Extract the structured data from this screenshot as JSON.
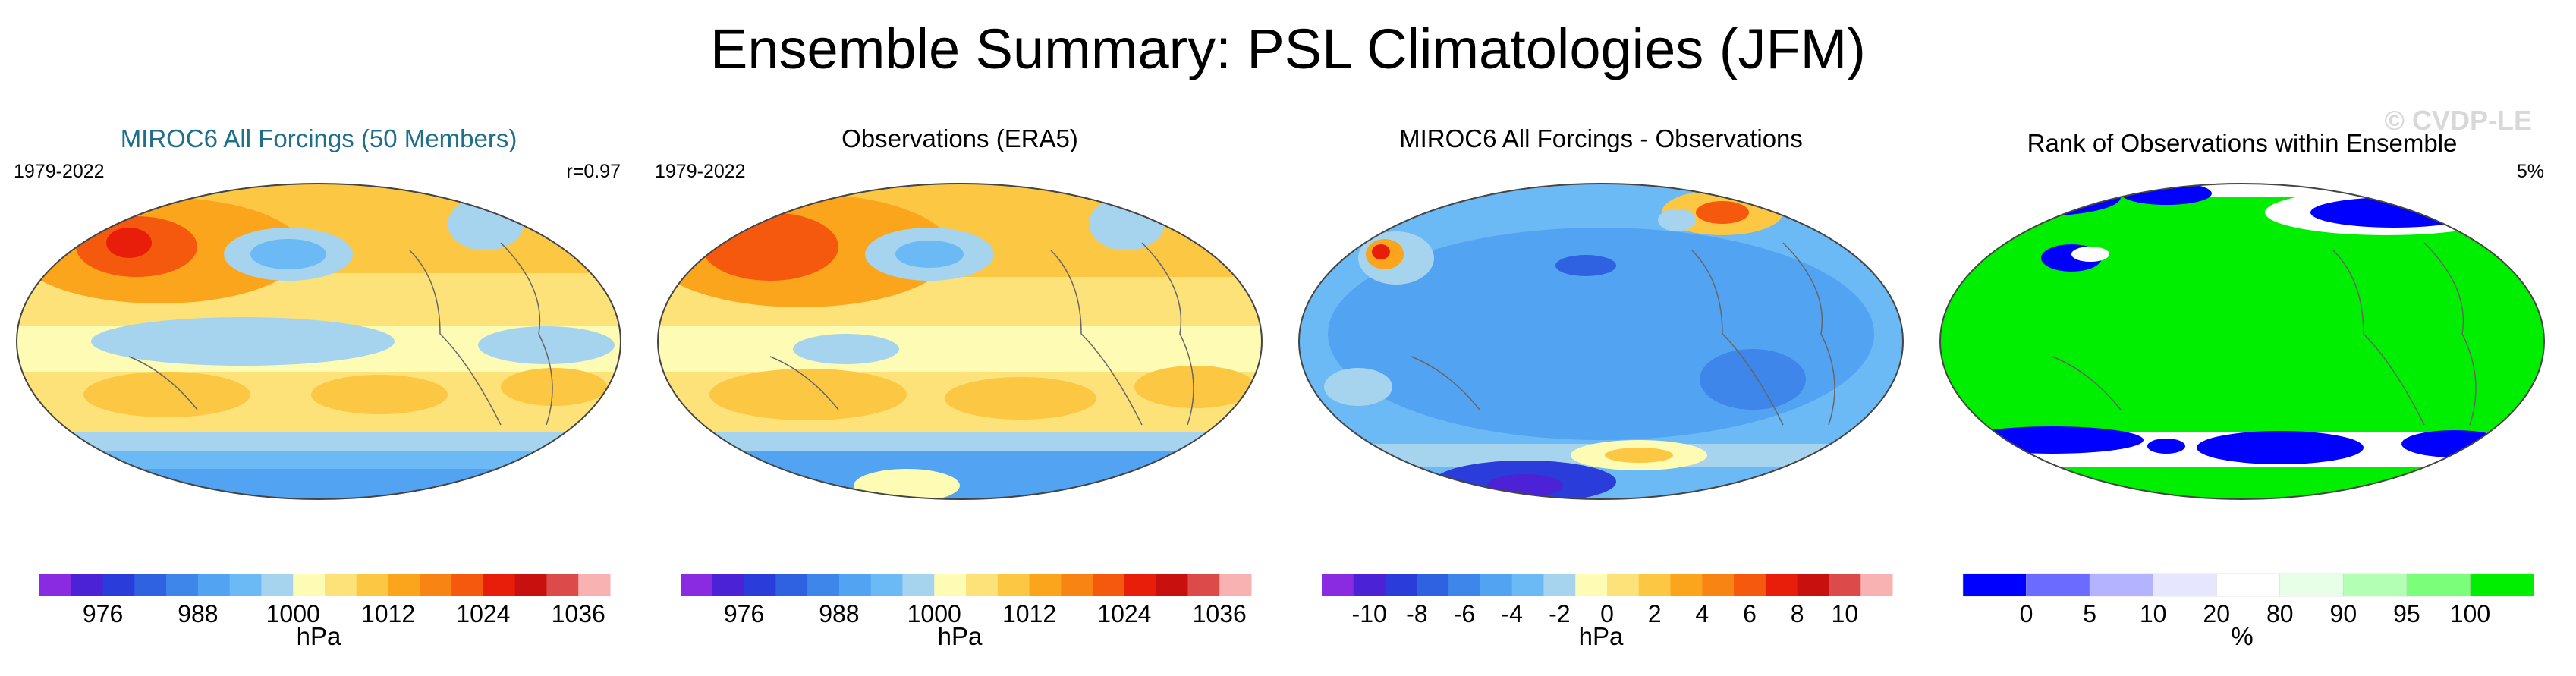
{
  "figure": {
    "title": "Ensemble Summary: PSL Climatologies (JFM)",
    "watermark": "© CVDP-LE"
  },
  "panels": [
    {
      "title": "MIROC6 All Forcings (50 Members)",
      "left_text": "1979-2022",
      "right_text": "r=0.97",
      "colorbar": {
        "colors": [
          "#8a2be2",
          "#4b22d6",
          "#2a3cd9",
          "#2f62e0",
          "#3e86ea",
          "#52a3f2",
          "#6bb9f5",
          "#a6d4ee",
          "#fdfbb4",
          "#fde27a",
          "#fcc743",
          "#fba51d",
          "#f88414",
          "#f4590d",
          "#e81e0a",
          "#c8100e",
          "#dd4a4a",
          "#f9b2b2"
        ],
        "tick_labels": [
          "976",
          "988",
          "1000",
          "1012",
          "1024",
          "1036"
        ],
        "tick_positions": [
          2,
          5,
          8,
          11,
          14,
          17
        ],
        "unit": "hPa"
      }
    },
    {
      "title": "Observations (ERA5)",
      "left_text": "1979-2022",
      "right_text": "",
      "colorbar": {
        "colors": [
          "#8a2be2",
          "#4b22d6",
          "#2a3cd9",
          "#2f62e0",
          "#3e86ea",
          "#52a3f2",
          "#6bb9f5",
          "#a6d4ee",
          "#fdfbb4",
          "#fde27a",
          "#fcc743",
          "#fba51d",
          "#f88414",
          "#f4590d",
          "#e81e0a",
          "#c8100e",
          "#dd4a4a",
          "#f9b2b2"
        ],
        "tick_labels": [
          "976",
          "988",
          "1000",
          "1012",
          "1024",
          "1036"
        ],
        "tick_positions": [
          2,
          5,
          8,
          11,
          14,
          17
        ],
        "unit": "hPa"
      }
    },
    {
      "title": "MIROC6 All Forcings - Observations",
      "left_text": "",
      "right_text": "",
      "colorbar": {
        "colors": [
          "#8a2be2",
          "#4b22d6",
          "#2a3cd9",
          "#2f62e0",
          "#3e86ea",
          "#52a3f2",
          "#6bb9f5",
          "#a6d4ee",
          "#fdfbb4",
          "#fde27a",
          "#fcc743",
          "#fba51d",
          "#f88414",
          "#f4590d",
          "#e81e0a",
          "#c8100e",
          "#dd4a4a",
          "#f9b2b2"
        ],
        "tick_labels": [
          "-10",
          "-8",
          "-6",
          "-4",
          "-2",
          "0",
          "2",
          "4",
          "6",
          "8",
          "10"
        ],
        "tick_positions": [
          1,
          2,
          3,
          4,
          5,
          6,
          7,
          8,
          9,
          10,
          11
        ],
        "tick_positions_alt_divisions": 12,
        "unit": "hPa"
      }
    },
    {
      "title": "Rank of Observations within Ensemble",
      "left_text": "",
      "right_text": "5%",
      "colorbar": {
        "colors": [
          "#0000ff",
          "#6b6bff",
          "#b3b3ff",
          "#e6e6ff",
          "#ffffff",
          "#e6ffe6",
          "#b3ffb3",
          "#7bff7b",
          "#00ee00"
        ],
        "tick_labels": [
          "0",
          "5",
          "10",
          "20",
          "80",
          "90",
          "95",
          "100"
        ],
        "tick_positions": [
          1,
          2,
          3,
          4,
          5,
          6,
          7,
          8
        ],
        "unit": "%"
      }
    }
  ]
}
